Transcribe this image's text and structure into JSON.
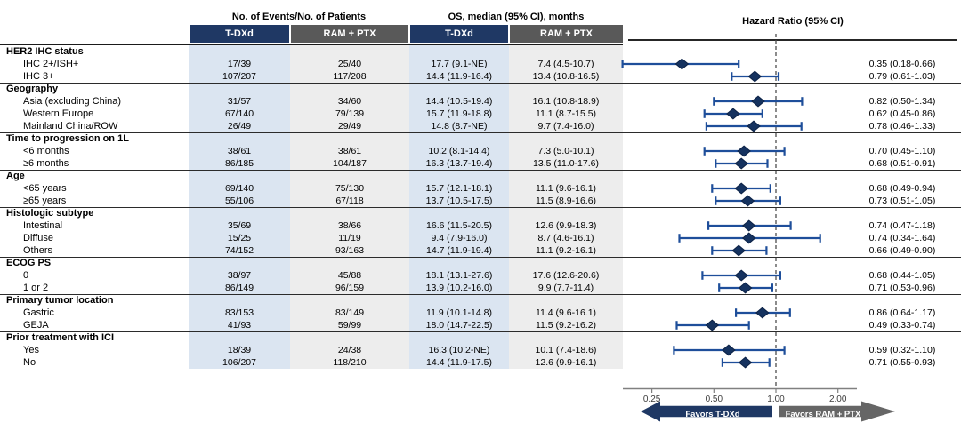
{
  "header": {
    "events_group": "No. of Events/No. of Patients",
    "os_group": "OS, median (95% CI), months",
    "hr_group": "Hazard Ratio (95% CI)",
    "col_tdxd": "T-DXd",
    "col_ram": "RAM + PTX"
  },
  "legend": {
    "favors_left": "Favors T-DXd",
    "favors_right": "Favors RAM + PTX"
  },
  "colors": {
    "tdxd_header": "#1f3864",
    "ram_header": "#595959",
    "tdxd_column_tint": "#dbe5f1",
    "ram_column_tint": "#ededed",
    "diamond": "#15325f",
    "whisker": "#1e4e9a",
    "favors_left_arrow": "#1f3864",
    "favors_right_arrow": "#666666"
  },
  "chart_data": {
    "type": "forest",
    "x_scale": "log",
    "x_ticks": [
      "0.25",
      "0.50",
      "1.00",
      "2.00"
    ],
    "x_tick_values": [
      0.25,
      0.5,
      1.0,
      2.0
    ],
    "reference_line": 1.0,
    "groups": [
      {
        "label": "HER2 IHC status",
        "rows": [
          {
            "label": "IHC 2+/ISH+",
            "events_tdxd": "17/39",
            "events_ram": "25/40",
            "os_tdxd": "17.7 (9.1-NE)",
            "os_ram": "7.4 (4.5-10.7)",
            "hr": 0.35,
            "ci_low": 0.18,
            "ci_high": 0.66,
            "hr_text": "0.35 (0.18-0.66)"
          },
          {
            "label": "IHC 3+",
            "events_tdxd": "107/207",
            "events_ram": "117/208",
            "os_tdxd": "14.4 (11.9-16.4)",
            "os_ram": "13.4 (10.8-16.5)",
            "hr": 0.79,
            "ci_low": 0.61,
            "ci_high": 1.03,
            "hr_text": "0.79 (0.61-1.03)"
          }
        ]
      },
      {
        "label": "Geography",
        "rows": [
          {
            "label": "Asia (excluding China)",
            "events_tdxd": "31/57",
            "events_ram": "34/60",
            "os_tdxd": "14.4 (10.5-19.4)",
            "os_ram": "16.1 (10.8-18.9)",
            "hr": 0.82,
            "ci_low": 0.5,
            "ci_high": 1.34,
            "hr_text": "0.82 (0.50-1.34)"
          },
          {
            "label": "Western Europe",
            "events_tdxd": "67/140",
            "events_ram": "79/139",
            "os_tdxd": "15.7 (11.9-18.8)",
            "os_ram": "11.1 (8.7-15.5)",
            "hr": 0.62,
            "ci_low": 0.45,
            "ci_high": 0.86,
            "hr_text": "0.62 (0.45-0.86)"
          },
          {
            "label": "Mainland China/ROW",
            "events_tdxd": "26/49",
            "events_ram": "29/49",
            "os_tdxd": "14.8 (8.7-NE)",
            "os_ram": "9.7 (7.4-16.0)",
            "hr": 0.78,
            "ci_low": 0.46,
            "ci_high": 1.33,
            "hr_text": "0.78 (0.46-1.33)"
          }
        ]
      },
      {
        "label": "Time to progression on 1L",
        "rows": [
          {
            "label": "<6 months",
            "events_tdxd": "38/61",
            "events_ram": "38/61",
            "os_tdxd": "10.2 (8.1-14.4)",
            "os_ram": "7.3 (5.0-10.1)",
            "hr": 0.7,
            "ci_low": 0.45,
            "ci_high": 1.1,
            "hr_text": "0.70 (0.45-1.10)"
          },
          {
            "label": "≥6 months",
            "events_tdxd": "86/185",
            "events_ram": "104/187",
            "os_tdxd": "16.3 (13.7-19.4)",
            "os_ram": "13.5 (11.0-17.6)",
            "hr": 0.68,
            "ci_low": 0.51,
            "ci_high": 0.91,
            "hr_text": "0.68 (0.51-0.91)"
          }
        ]
      },
      {
        "label": "Age",
        "rows": [
          {
            "label": "<65 years",
            "events_tdxd": "69/140",
            "events_ram": "75/130",
            "os_tdxd": "15.7 (12.1-18.1)",
            "os_ram": "11.1 (9.6-16.1)",
            "hr": 0.68,
            "ci_low": 0.49,
            "ci_high": 0.94,
            "hr_text": "0.68 (0.49-0.94)"
          },
          {
            "label": "≥65 years",
            "events_tdxd": "55/106",
            "events_ram": "67/118",
            "os_tdxd": "13.7 (10.5-17.5)",
            "os_ram": "11.5 (8.9-16.6)",
            "hr": 0.73,
            "ci_low": 0.51,
            "ci_high": 1.05,
            "hr_text": "0.73 (0.51-1.05)"
          }
        ]
      },
      {
        "label": "Histologic subtype",
        "rows": [
          {
            "label": "Intestinal",
            "events_tdxd": "35/69",
            "events_ram": "38/66",
            "os_tdxd": "16.6 (11.5-20.5)",
            "os_ram": "12.6 (9.9-18.3)",
            "hr": 0.74,
            "ci_low": 0.47,
            "ci_high": 1.18,
            "hr_text": "0.74 (0.47-1.18)"
          },
          {
            "label": "Diffuse",
            "events_tdxd": "15/25",
            "events_ram": "11/19",
            "os_tdxd": "9.4 (7.9-16.0)",
            "os_ram": "8.7 (4.6-16.1)",
            "hr": 0.74,
            "ci_low": 0.34,
            "ci_high": 1.64,
            "hr_text": "0.74 (0.34-1.64)"
          },
          {
            "label": "Others",
            "events_tdxd": "74/152",
            "events_ram": "93/163",
            "os_tdxd": "14.7 (11.9-19.4)",
            "os_ram": "11.1 (9.2-16.1)",
            "hr": 0.66,
            "ci_low": 0.49,
            "ci_high": 0.9,
            "hr_text": "0.66 (0.49-0.90)"
          }
        ]
      },
      {
        "label": "ECOG PS",
        "rows": [
          {
            "label": "0",
            "events_tdxd": "38/97",
            "events_ram": "45/88",
            "os_tdxd": "18.1 (13.1-27.6)",
            "os_ram": "17.6 (12.6-20.6)",
            "hr": 0.68,
            "ci_low": 0.44,
            "ci_high": 1.05,
            "hr_text": "0.68 (0.44-1.05)"
          },
          {
            "label": "1 or 2",
            "events_tdxd": "86/149",
            "events_ram": "96/159",
            "os_tdxd": "13.9 (10.2-16.0)",
            "os_ram": "9.9 (7.7-11.4)",
            "hr": 0.71,
            "ci_low": 0.53,
            "ci_high": 0.96,
            "hr_text": "0.71 (0.53-0.96)"
          }
        ]
      },
      {
        "label": "Primary tumor location",
        "rows": [
          {
            "label": "Gastric",
            "events_tdxd": "83/153",
            "events_ram": "83/149",
            "os_tdxd": "11.9 (10.1-14.8)",
            "os_ram": "11.4 (9.6-16.1)",
            "hr": 0.86,
            "ci_low": 0.64,
            "ci_high": 1.17,
            "hr_text": "0.86 (0.64-1.17)"
          },
          {
            "label": "GEJA",
            "events_tdxd": "41/93",
            "events_ram": "59/99",
            "os_tdxd": "18.0 (14.7-22.5)",
            "os_ram": "11.5 (9.2-16.2)",
            "hr": 0.49,
            "ci_low": 0.33,
            "ci_high": 0.74,
            "hr_text": "0.49 (0.33-0.74)"
          }
        ]
      },
      {
        "label": "Prior treatment with ICI",
        "rows": [
          {
            "label": "Yes",
            "events_tdxd": "18/39",
            "events_ram": "24/38",
            "os_tdxd": "16.3 (10.2-NE)",
            "os_ram": "10.1 (7.4-18.6)",
            "hr": 0.59,
            "ci_low": 0.32,
            "ci_high": 1.1,
            "hr_text": "0.59 (0.32-1.10)"
          },
          {
            "label": "No",
            "events_tdxd": "106/207",
            "events_ram": "118/210",
            "os_tdxd": "14.4 (11.9-17.5)",
            "os_ram": "12.6 (9.9-16.1)",
            "hr": 0.71,
            "ci_low": 0.55,
            "ci_high": 0.93,
            "hr_text": "0.71 (0.55-0.93)"
          }
        ]
      }
    ]
  }
}
